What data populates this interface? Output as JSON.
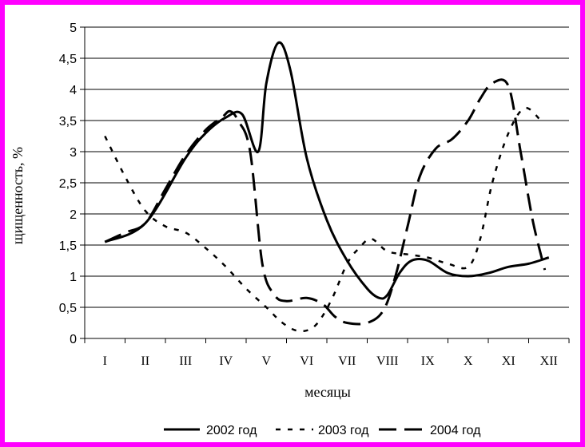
{
  "chart_data": {
    "type": "line",
    "categories": [
      "I",
      "II",
      "III",
      "IV",
      "V",
      "VI",
      "VII",
      "VIII",
      "IX",
      "X",
      "XI",
      "XII"
    ],
    "xlabel": "месяцы",
    "ylabel": "щищенность, %",
    "ylim": [
      0,
      5
    ],
    "yticks": [
      "0",
      "0,5",
      "1",
      "1,5",
      "2",
      "2,5",
      "3",
      "3,5",
      "4",
      "4,5",
      "5"
    ],
    "grid": true,
    "legend_position": "bottom",
    "series": [
      {
        "name": "2002 год",
        "style": "solid",
        "x": [
          1,
          2,
          3,
          3.5,
          4,
          4.4,
          4.8,
          5,
          5.3,
          5.6,
          6,
          6.5,
          7,
          7.5,
          7.8,
          8,
          8.3,
          8.6,
          9,
          9.5,
          10,
          10.5,
          11,
          11.5,
          12
        ],
        "y": [
          1.55,
          1.85,
          2.9,
          3.3,
          3.55,
          3.6,
          3.0,
          4.1,
          4.75,
          4.3,
          2.9,
          1.9,
          1.25,
          0.8,
          0.65,
          0.7,
          1.05,
          1.25,
          1.25,
          1.05,
          1.0,
          1.05,
          1.15,
          1.2,
          1.3
        ]
      },
      {
        "name": "2003 год",
        "style": "dashed",
        "x": [
          1,
          1.5,
          2,
          2.5,
          3,
          3.5,
          4,
          4.5,
          5,
          5.4,
          5.8,
          6.2,
          6.6,
          7,
          7.3,
          7.6,
          8,
          8.5,
          9,
          9.5,
          10,
          10.3,
          10.6,
          11,
          11.4,
          11.8
        ],
        "y": [
          3.25,
          2.6,
          2.05,
          1.8,
          1.7,
          1.45,
          1.15,
          0.8,
          0.5,
          0.25,
          0.12,
          0.2,
          0.6,
          1.2,
          1.45,
          1.6,
          1.4,
          1.35,
          1.3,
          1.2,
          1.15,
          1.6,
          2.5,
          3.3,
          3.7,
          3.5
        ]
      },
      {
        "name": "2004 год",
        "style": "long-dashed",
        "x": [
          1,
          1.5,
          2,
          2.5,
          3,
          3.5,
          3.9,
          4.1,
          4.3,
          4.6,
          4.9,
          5.2,
          5.5,
          6,
          6.4,
          6.7,
          7,
          7.5,
          7.9,
          8.2,
          8.5,
          8.8,
          9.2,
          9.6,
          10,
          10.3,
          10.6,
          11,
          11.3,
          11.6,
          11.9
        ],
        "y": [
          1.55,
          1.7,
          1.85,
          2.4,
          2.95,
          3.35,
          3.55,
          3.65,
          3.5,
          3.0,
          1.2,
          0.7,
          0.6,
          0.65,
          0.55,
          0.35,
          0.25,
          0.25,
          0.45,
          1.0,
          1.8,
          2.6,
          3.05,
          3.2,
          3.5,
          3.85,
          4.1,
          4.05,
          3.0,
          1.9,
          1.1
        ]
      }
    ]
  }
}
